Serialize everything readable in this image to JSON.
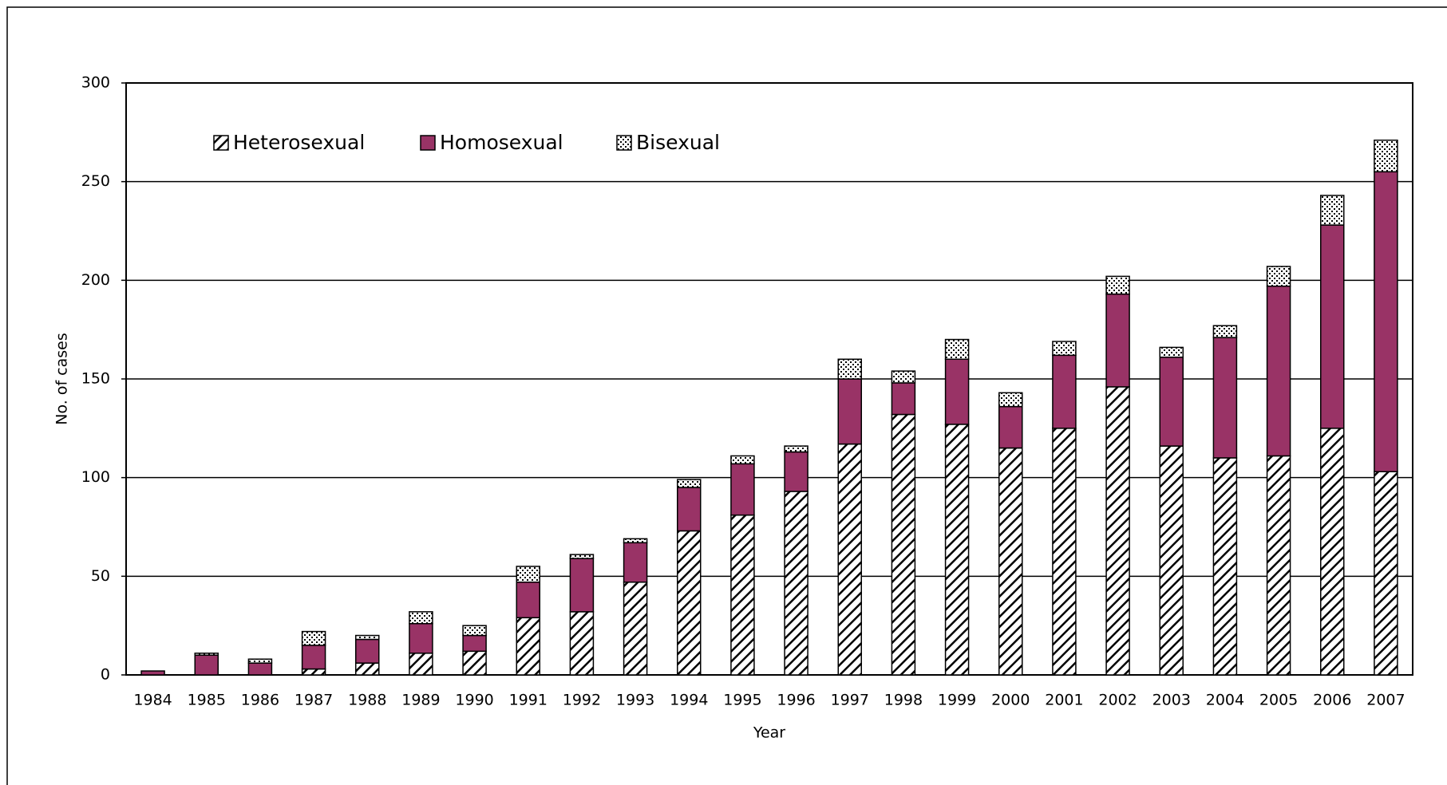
{
  "chart_data": {
    "type": "stacked_bar",
    "x_label": "Year",
    "y_label": "No. of cases",
    "categories": [
      "1984",
      "1985",
      "1986",
      "1987",
      "1988",
      "1989",
      "1990",
      "1991",
      "1992",
      "1993",
      "1994",
      "1995",
      "1996",
      "1997",
      "1998",
      "1999",
      "2000",
      "2001",
      "2002",
      "2003",
      "2004",
      "2005",
      "2006",
      "2007"
    ],
    "series": [
      {
        "name": "Heterosexual",
        "color": "#000000",
        "pattern": "hatch",
        "values": [
          0,
          0,
          0,
          3,
          6,
          11,
          12,
          29,
          32,
          47,
          73,
          81,
          93,
          117,
          132,
          127,
          115,
          125,
          146,
          116,
          110,
          111,
          125,
          103
        ]
      },
      {
        "name": "Homosexual",
        "color": "#993366",
        "pattern": "solid",
        "values": [
          2,
          10,
          6,
          12,
          12,
          15,
          8,
          18,
          27,
          20,
          22,
          26,
          20,
          33,
          16,
          33,
          21,
          37,
          47,
          45,
          61,
          86,
          103,
          152
        ]
      },
      {
        "name": "Bisexual",
        "color": "#000000",
        "pattern": "dots",
        "values": [
          0,
          1,
          2,
          7,
          2,
          6,
          5,
          8,
          2,
          2,
          4,
          4,
          3,
          10,
          6,
          10,
          7,
          7,
          9,
          5,
          6,
          10,
          15,
          16
        ]
      }
    ],
    "ylim": [
      0,
      300
    ],
    "yticks": [
      0,
      50,
      100,
      150,
      200,
      250,
      300
    ],
    "grid": true
  }
}
